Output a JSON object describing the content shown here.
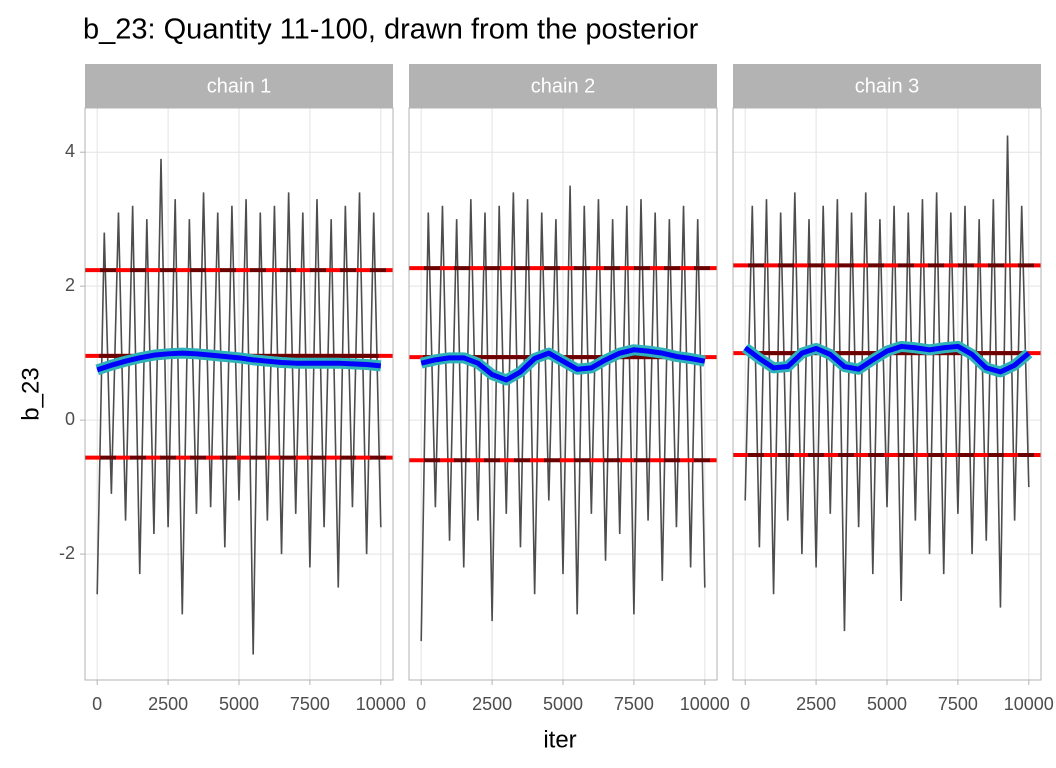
{
  "chart_data": {
    "type": "trace",
    "title": "b_23: Quantity 11-100, drawn from the posterior",
    "x_label": "iter",
    "y_label": "b_23",
    "xlim": [
      -430,
      10430
    ],
    "ylim": [
      -3.88,
      4.66
    ],
    "xticks": [
      0,
      2500,
      5000,
      7500,
      10000
    ],
    "yticks": [
      -2,
      0,
      2,
      4
    ],
    "grid": true,
    "trace_color": "#4d4d4d",
    "smooth_color": "#0000ff",
    "smooth_band_color": "#2fb3b8",
    "line_color": "#ff0000",
    "line_dark_color": "#6b0000",
    "strip_color": "#b3b3b3",
    "trace_x": [
      0,
      250,
      500,
      750,
      1000,
      1250,
      1500,
      1750,
      2000,
      2250,
      2500,
      2750,
      3000,
      3250,
      3500,
      3750,
      4000,
      4250,
      4500,
      4750,
      5000,
      5250,
      5500,
      5750,
      6000,
      6250,
      6500,
      6750,
      7000,
      7250,
      7500,
      7750,
      8000,
      8250,
      8500,
      8750,
      9000,
      9250,
      9500,
      9750,
      10000
    ],
    "smooth_x": [
      0,
      500,
      1000,
      1500,
      2000,
      2500,
      3000,
      3500,
      4000,
      4500,
      5000,
      5500,
      6000,
      6500,
      7000,
      7500,
      8000,
      8500,
      9000,
      9500,
      10000
    ],
    "facets": [
      {
        "name": "chain 1",
        "trace": [
          -2.6,
          2.8,
          -1.1,
          3.1,
          -1.5,
          3.2,
          -2.3,
          3.0,
          -1.7,
          3.9,
          -1.6,
          3.3,
          -2.9,
          3.0,
          -1.4,
          3.4,
          -1.3,
          3.1,
          -1.9,
          3.2,
          -1.2,
          3.3,
          -3.5,
          3.1,
          -1.5,
          3.2,
          -2.0,
          3.4,
          -1.4,
          3.1,
          -2.2,
          3.3,
          -1.6,
          3.0,
          -2.5,
          3.2,
          -1.3,
          3.4,
          -2.0,
          3.1,
          -1.6
        ],
        "smooth": [
          0.75,
          0.82,
          0.88,
          0.93,
          0.97,
          0.99,
          1.0,
          0.99,
          0.97,
          0.95,
          0.93,
          0.9,
          0.88,
          0.86,
          0.85,
          0.85,
          0.85,
          0.85,
          0.84,
          0.83,
          0.81
        ],
        "upper": 2.24,
        "mean": 0.96,
        "lower": -0.56
      },
      {
        "name": "chain 2",
        "trace": [
          -3.3,
          3.1,
          -1.3,
          3.2,
          -1.8,
          3.0,
          -2.2,
          3.3,
          -1.5,
          3.1,
          -3.0,
          3.2,
          -1.4,
          3.4,
          -1.9,
          3.3,
          -2.6,
          3.1,
          -1.2,
          3.0,
          -2.3,
          3.5,
          -2.9,
          3.2,
          -1.4,
          3.3,
          -2.1,
          3.0,
          -1.7,
          3.2,
          -2.9,
          3.3,
          -1.5,
          3.1,
          -2.4,
          3.0,
          -1.6,
          3.2,
          -2.2,
          3.0,
          -2.5
        ],
        "smooth": [
          0.85,
          0.9,
          0.93,
          0.93,
          0.85,
          0.68,
          0.6,
          0.72,
          0.92,
          1.0,
          0.88,
          0.76,
          0.78,
          0.9,
          1.0,
          1.05,
          1.03,
          1.0,
          0.95,
          0.92,
          0.88
        ],
        "upper": 2.27,
        "mean": 0.94,
        "lower": -0.6
      },
      {
        "name": "chain 3",
        "trace": [
          -1.2,
          3.2,
          -1.9,
          3.3,
          -2.6,
          3.1,
          -1.5,
          3.4,
          -2.0,
          3.0,
          -2.2,
          3.2,
          -1.4,
          3.3,
          -3.15,
          3.1,
          -1.6,
          3.4,
          -2.3,
          3.0,
          -1.3,
          3.2,
          -2.7,
          3.1,
          -1.5,
          3.3,
          -2.0,
          3.4,
          -2.3,
          3.1,
          -1.4,
          3.2,
          -2.0,
          3.0,
          -1.8,
          3.3,
          -2.8,
          4.25,
          -1.5,
          3.2,
          -1.0
        ],
        "smooth": [
          1.08,
          0.92,
          0.78,
          0.8,
          1.0,
          1.07,
          0.98,
          0.8,
          0.76,
          0.9,
          1.03,
          1.1,
          1.08,
          1.05,
          1.08,
          1.1,
          0.98,
          0.78,
          0.72,
          0.82,
          1.0
        ],
        "upper": 2.31,
        "mean": 1.0,
        "lower": -0.52
      }
    ]
  }
}
